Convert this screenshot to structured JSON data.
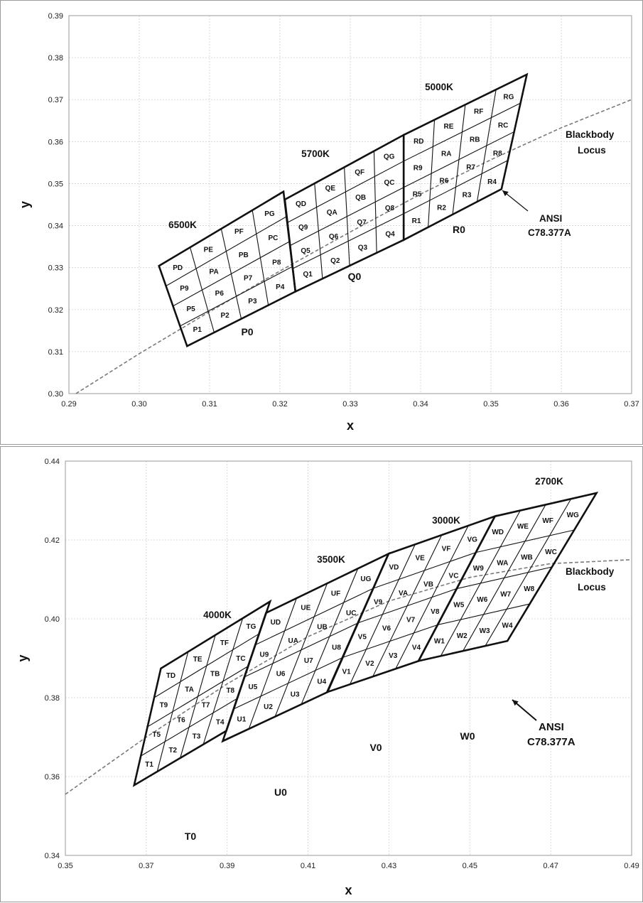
{
  "chart_data": [
    {
      "type": "line",
      "title": "",
      "xlabel": "x",
      "ylabel": "y",
      "xlim": [
        0.29,
        0.37
      ],
      "ylim": [
        0.3,
        0.39
      ],
      "grid": true,
      "xticks": [
        "0.29",
        "0.30",
        "0.31",
        "0.32",
        "0.33",
        "0.34",
        "0.35",
        "0.36",
        "0.37"
      ],
      "yticks": [
        "0.30",
        "0.31",
        "0.32",
        "0.33",
        "0.34",
        "0.35",
        "0.36",
        "0.37",
        "0.38",
        "0.39"
      ],
      "series": [
        {
          "name": "Blackbody Locus",
          "x": [
            0.291,
            0.3,
            0.31,
            0.32,
            0.33,
            0.34,
            0.35,
            0.36,
            0.37
          ],
          "y": [
            0.3,
            0.3095,
            0.3195,
            0.3292,
            0.3385,
            0.3475,
            0.3557,
            0.3633,
            0.37
          ]
        }
      ],
      "quadrangles": [
        {
          "label": "6500K",
          "bin_label": "P0",
          "corners": [
            [
              0.3028,
              0.3304
            ],
            [
              0.3205,
              0.3481
            ],
            [
              0.3222,
              0.3243
            ],
            [
              0.3068,
              0.3113
            ]
          ],
          "cells": [
            [
              "PD",
              "PE",
              "PF",
              "PG"
            ],
            [
              "P9",
              "PA",
              "PB",
              "PC"
            ],
            [
              "P5",
              "P6",
              "P7",
              "P8"
            ],
            [
              "P1",
              "P2",
              "P3",
              "P4"
            ]
          ]
        },
        {
          "label": "5700K",
          "bin_label": "Q0",
          "corners": [
            [
              0.3207,
              0.3462
            ],
            [
              0.3376,
              0.3616
            ],
            [
              0.3376,
              0.3366
            ],
            [
              0.3222,
              0.3243
            ]
          ],
          "cells": [
            [
              "QD",
              "QE",
              "QF",
              "QG"
            ],
            [
              "Q9",
              "QA",
              "QB",
              "QC"
            ],
            [
              "Q5",
              "Q6",
              "Q7",
              "Q8"
            ],
            [
              "Q1",
              "Q2",
              "Q3",
              "Q4"
            ]
          ]
        },
        {
          "label": "5000K",
          "bin_label": "R0",
          "corners": [
            [
              0.3376,
              0.3616
            ],
            [
              0.3551,
              0.376
            ],
            [
              0.3515,
              0.3487
            ],
            [
              0.3376,
              0.3366
            ]
          ],
          "cells": [
            [
              "RD",
              "RE",
              "RF",
              "RG"
            ],
            [
              "R9",
              "RA",
              "RB",
              "RC"
            ],
            [
              "R5",
              "R6",
              "R7",
              "R8"
            ],
            [
              "R1",
              "R2",
              "R3",
              "R4"
            ]
          ]
        }
      ],
      "annotations": [
        "Blackbody\nLocus",
        "ANSI\nC78.377A"
      ]
    },
    {
      "type": "line",
      "title": "",
      "xlabel": "x",
      "ylabel": "y",
      "xlim": [
        0.35,
        0.49
      ],
      "ylim": [
        0.34,
        0.44
      ],
      "grid": true,
      "xticks": [
        "0.35",
        "0.37",
        "0.39",
        "0.41",
        "0.43",
        "0.45",
        "0.47",
        "0.49"
      ],
      "yticks": [
        "0.34",
        "0.36",
        "0.38",
        "0.40",
        "0.42",
        "0.44"
      ],
      "series": [
        {
          "name": "Blackbody Locus",
          "x": [
            0.35,
            0.37,
            0.39,
            0.41,
            0.43,
            0.45,
            0.47,
            0.49
          ],
          "y": [
            0.3555,
            0.37,
            0.3835,
            0.3955,
            0.4045,
            0.4105,
            0.414,
            0.415
          ]
        }
      ],
      "quadrangles": [
        {
          "label": "4000K",
          "bin_label": "T0",
          "corners": [
            [
              0.3736,
              0.3874
            ],
            [
              0.4006,
              0.4044
            ],
            [
              0.3898,
              0.3716
            ],
            [
              0.367,
              0.3578
            ]
          ],
          "cells": [
            [
              "TD",
              "TE",
              "TF",
              "TG"
            ],
            [
              "T9",
              "TA",
              "TB",
              "TC"
            ],
            [
              "T5",
              "T6",
              "T7",
              "T8"
            ],
            [
              "T1",
              "T2",
              "T3",
              "T4"
            ]
          ]
        },
        {
          "label": "3500K",
          "bin_label": "U0",
          "corners": [
            [
              0.3996,
              0.4015
            ],
            [
              0.4299,
              0.4165
            ],
            [
              0.4148,
              0.3814
            ],
            [
              0.3889,
              0.369
            ]
          ],
          "cells": [
            [
              "UD",
              "UE",
              "UF",
              "UG"
            ],
            [
              "U9",
              "UA",
              "UB",
              "UC"
            ],
            [
              "U5",
              "U6",
              "U7",
              "U8"
            ],
            [
              "U1",
              "U2",
              "U3",
              "U4"
            ]
          ]
        },
        {
          "label": "3000K",
          "bin_label": "V0",
          "corners": [
            [
              0.4299,
              0.4165
            ],
            [
              0.4562,
              0.426
            ],
            [
              0.4373,
              0.3893
            ],
            [
              0.4147,
              0.3814
            ]
          ],
          "cells": [
            [
              "VD",
              "VE",
              "VF",
              "VG"
            ],
            [
              "V9",
              "VA",
              "VB",
              "VC"
            ],
            [
              "V5",
              "V6",
              "V7",
              "V8"
            ],
            [
              "V1",
              "V2",
              "V3",
              "V4"
            ]
          ]
        },
        {
          "label": "2700K",
          "bin_label": "W0",
          "corners": [
            [
              0.4562,
              0.426
            ],
            [
              0.4813,
              0.4319
            ],
            [
              0.4593,
              0.3944
            ],
            [
              0.4373,
              0.3893
            ]
          ],
          "cells": [
            [
              "WD",
              "WE",
              "WF",
              "WG"
            ],
            [
              "W9",
              "WA",
              "WB",
              "WC"
            ],
            [
              "W5",
              "W6",
              "W7",
              "W8"
            ],
            [
              "W1",
              "W2",
              "W3",
              "W4"
            ]
          ]
        }
      ],
      "annotations": [
        "Blackbody\nLocus",
        "ANSI\nC78.377A"
      ]
    }
  ],
  "annotations_text": {
    "locus_line1": "Blackbody",
    "locus_line2": "Locus",
    "ansi_line1": "ANSI",
    "ansi_line2": "C78.377A"
  }
}
